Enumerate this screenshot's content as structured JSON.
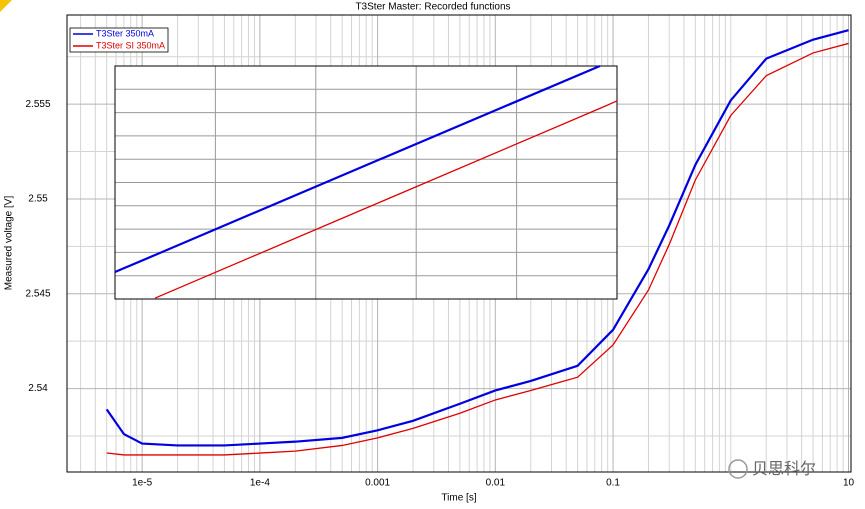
{
  "chart_data": [
    {
      "type": "line",
      "title": "T3Ster Master: Recorded functions",
      "x_label": "Time [s]",
      "y_label": "Measured voltage [V]",
      "log_x": true,
      "grid": true,
      "legend": "top-left",
      "x": [
        5e-06,
        7e-06,
        1e-05,
        2e-05,
        5e-05,
        0.0001,
        0.0002,
        0.0005,
        0.001,
        0.002,
        0.005,
        0.01,
        0.02,
        0.05,
        0.1,
        0.2,
        0.3,
        0.5,
        1,
        2,
        5,
        10
      ],
      "series": [
        {
          "name": "T3Ster 350mA",
          "color": "#0000e0",
          "values": [
            2.5389,
            2.5376,
            2.5371,
            2.537,
            2.537,
            2.5371,
            2.5372,
            2.5374,
            2.5378,
            2.5383,
            2.5392,
            2.5399,
            2.5404,
            2.5412,
            2.5431,
            2.5463,
            2.5486,
            2.5518,
            2.5552,
            2.5574,
            2.5584,
            2.5589
          ]
        },
        {
          "name": "T3Ster SI 350mA",
          "color": "#e00000",
          "values": [
            2.5366,
            2.5365,
            2.5365,
            2.5365,
            2.5365,
            2.5366,
            2.5367,
            2.537,
            2.5374,
            2.5379,
            2.5387,
            2.5394,
            2.5399,
            2.5406,
            2.5423,
            2.5452,
            2.5476,
            2.551,
            2.5544,
            2.5565,
            2.5577,
            2.5582
          ]
        }
      ],
      "xlim": [
        2.3e-06,
        10.5
      ],
      "xticks": [
        {
          "value": 1e-05,
          "label": "1e-5"
        },
        {
          "value": 0.0001,
          "label": "1e-4"
        },
        0.001,
        0.01,
        0.1,
        10
      ],
      "xminorticks": [
        3e-06,
        4e-06,
        5e-06,
        6e-06,
        7e-06,
        8e-06,
        9e-06,
        2e-05,
        3e-05,
        4e-05,
        5e-05,
        6e-05,
        7e-05,
        8e-05,
        9e-05,
        0.0002,
        0.0003,
        0.0004,
        0.0005,
        0.0006,
        0.0007,
        0.0008,
        0.0009,
        0.002,
        0.003,
        0.004,
        0.005,
        0.006,
        0.007,
        0.008,
        0.009,
        0.02,
        0.03,
        0.04,
        0.05,
        0.06,
        0.07,
        0.08,
        0.09,
        0.2,
        0.3,
        0.4,
        0.5,
        0.6,
        0.7,
        0.8,
        0.9,
        1,
        2,
        3,
        4,
        5,
        6,
        7,
        8,
        9
      ],
      "ylim": [
        2.5356,
        2.5597
      ],
      "yticks": [
        2.54,
        2.545,
        2.55,
        2.555
      ],
      "yminorticks": [
        2.5375,
        2.5425,
        2.5475,
        2.5525,
        2.5575
      ],
      "watermark": "贝思科尔"
    },
    {
      "type": "line",
      "grid": true,
      "x": [
        0,
        0.08,
        0.5,
        0.966,
        1
      ],
      "series": [
        {
          "color": "#0000e0",
          "values": [
            0.116,
            0.189,
            0.574,
            1.0,
            null
          ]
        },
        {
          "color": "#e00000",
          "values": [
            null,
            0.004,
            0.39,
            0.818,
            0.85
          ]
        }
      ],
      "xlim": [
        0,
        1
      ],
      "ylim": [
        0,
        1
      ],
      "xticks": [
        0.2,
        0.4,
        0.6,
        0.8
      ],
      "yticks": [
        0.1,
        0.2,
        0.3,
        0.4,
        0.5,
        0.6,
        0.7,
        0.8,
        0.9
      ]
    }
  ]
}
